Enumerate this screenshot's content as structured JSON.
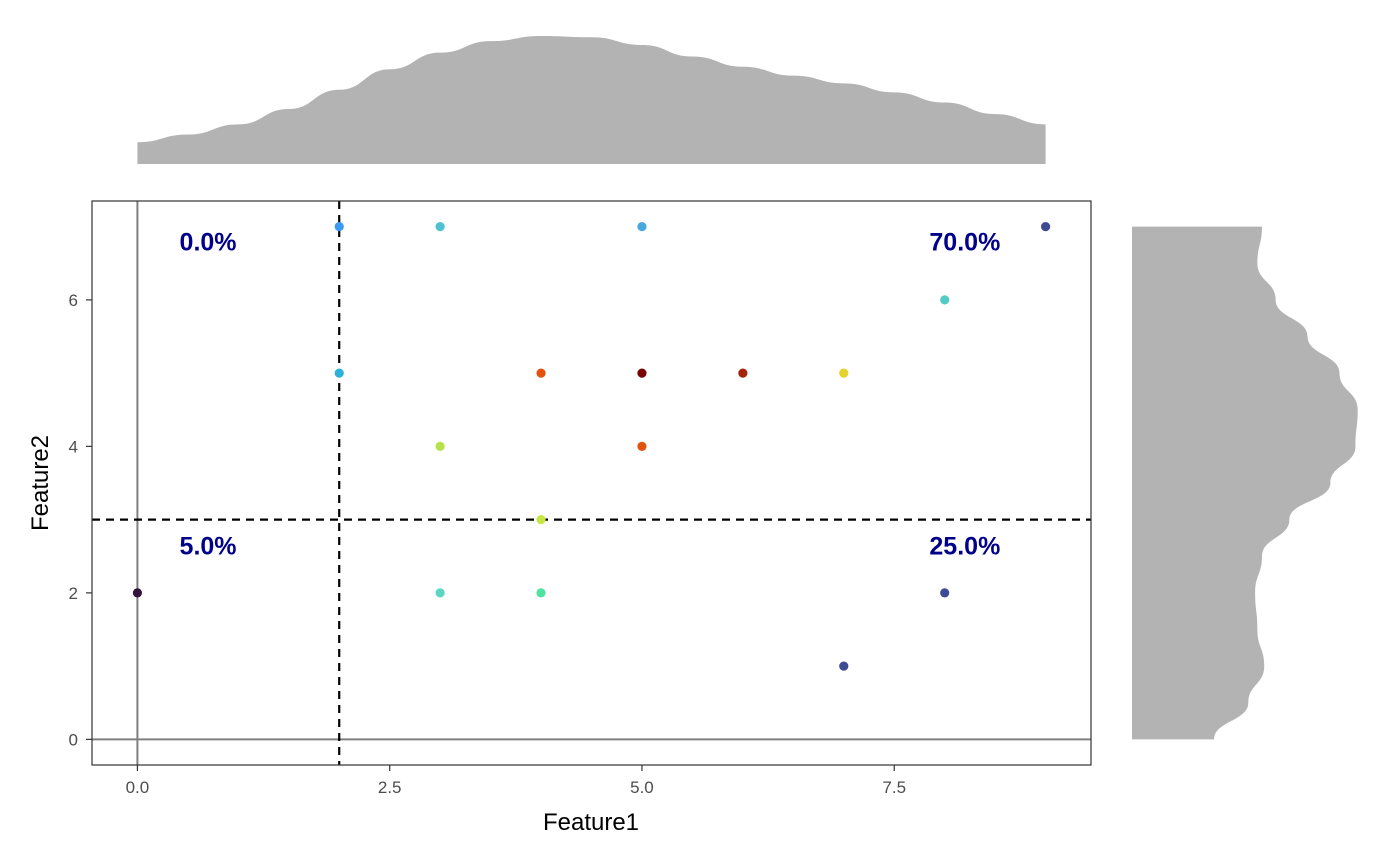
{
  "chart_data": {
    "type": "scatter",
    "xlabel": "Feature1",
    "ylabel": "Feature2",
    "xlim": [
      -0.45,
      9.45
    ],
    "ylim": [
      -0.35,
      7.35
    ],
    "x_ticks": [
      0,
      2.5,
      5,
      7.5
    ],
    "x_tick_labels": [
      "0.0",
      "2.5",
      "5.0",
      "7.5"
    ],
    "y_ticks": [
      0,
      2,
      4,
      6
    ],
    "y_tick_labels": [
      "0",
      "2",
      "4",
      "6"
    ],
    "grid": false,
    "legend": "none",
    "reference_lines": {
      "x": 0,
      "y": 0,
      "color": "#808080"
    },
    "threshold_lines": {
      "x": 2,
      "y": 3,
      "style": "dashed",
      "color": "#000000"
    },
    "quadrant_labels": [
      {
        "position": "top-left",
        "text": "0.0%",
        "x": 0.7,
        "y": 6.8
      },
      {
        "position": "top-right",
        "text": "70.0%",
        "x": 8.2,
        "y": 6.8
      },
      {
        "position": "bottom-left",
        "text": "5.0%",
        "x": 0.7,
        "y": 2.65
      },
      {
        "position": "bottom-right",
        "text": "25.0%",
        "x": 8.2,
        "y": 2.65
      }
    ],
    "points": [
      {
        "x": 0,
        "y": 2,
        "color": "#30123b"
      },
      {
        "x": 2,
        "y": 7,
        "color": "#3d9bf6"
      },
      {
        "x": 2,
        "y": 5,
        "color": "#2fb2d9"
      },
      {
        "x": 3,
        "y": 7,
        "color": "#4ec1d2"
      },
      {
        "x": 3,
        "y": 4,
        "color": "#b5e24a"
      },
      {
        "x": 3,
        "y": 2,
        "color": "#5bd6c4"
      },
      {
        "x": 4,
        "y": 5,
        "color": "#e2520f"
      },
      {
        "x": 4,
        "y": 3,
        "color": "#c8e548"
      },
      {
        "x": 4,
        "y": 2,
        "color": "#4ee3a0"
      },
      {
        "x": 5,
        "y": 7,
        "color": "#4aa8de"
      },
      {
        "x": 5,
        "y": 5,
        "color": "#7a0403"
      },
      {
        "x": 5,
        "y": 4,
        "color": "#e2520f"
      },
      {
        "x": 6,
        "y": 5,
        "color": "#a5250b"
      },
      {
        "x": 7,
        "y": 5,
        "color": "#e6d22f"
      },
      {
        "x": 7,
        "y": 1,
        "color": "#3e4a94"
      },
      {
        "x": 8,
        "y": 6,
        "color": "#54ccc4"
      },
      {
        "x": 8,
        "y": 2,
        "color": "#3e4a94"
      },
      {
        "x": 9,
        "y": 7,
        "color": "#3e4a94"
      }
    ],
    "marginal_density_x": {
      "color": "#b3b3b3",
      "x": [
        0,
        0.5,
        1,
        1.5,
        2,
        2.5,
        3,
        3.5,
        4,
        4.5,
        5,
        5.5,
        6,
        6.5,
        7,
        7.5,
        8,
        8.5,
        9
      ],
      "density": [
        0.17,
        0.23,
        0.31,
        0.43,
        0.58,
        0.74,
        0.87,
        0.96,
        1.0,
        0.99,
        0.93,
        0.84,
        0.76,
        0.69,
        0.63,
        0.56,
        0.48,
        0.39,
        0.31
      ]
    },
    "marginal_density_y": {
      "color": "#b3b3b3",
      "y": [
        0,
        0.5,
        1,
        1.5,
        2,
        2.5,
        3,
        3.5,
        4,
        4.5,
        5,
        5.5,
        6,
        6.5,
        7
      ],
      "density": [
        0.36,
        0.51,
        0.58,
        0.55,
        0.54,
        0.57,
        0.69,
        0.87,
        0.98,
        0.99,
        0.91,
        0.77,
        0.63,
        0.55,
        0.57
      ]
    }
  }
}
